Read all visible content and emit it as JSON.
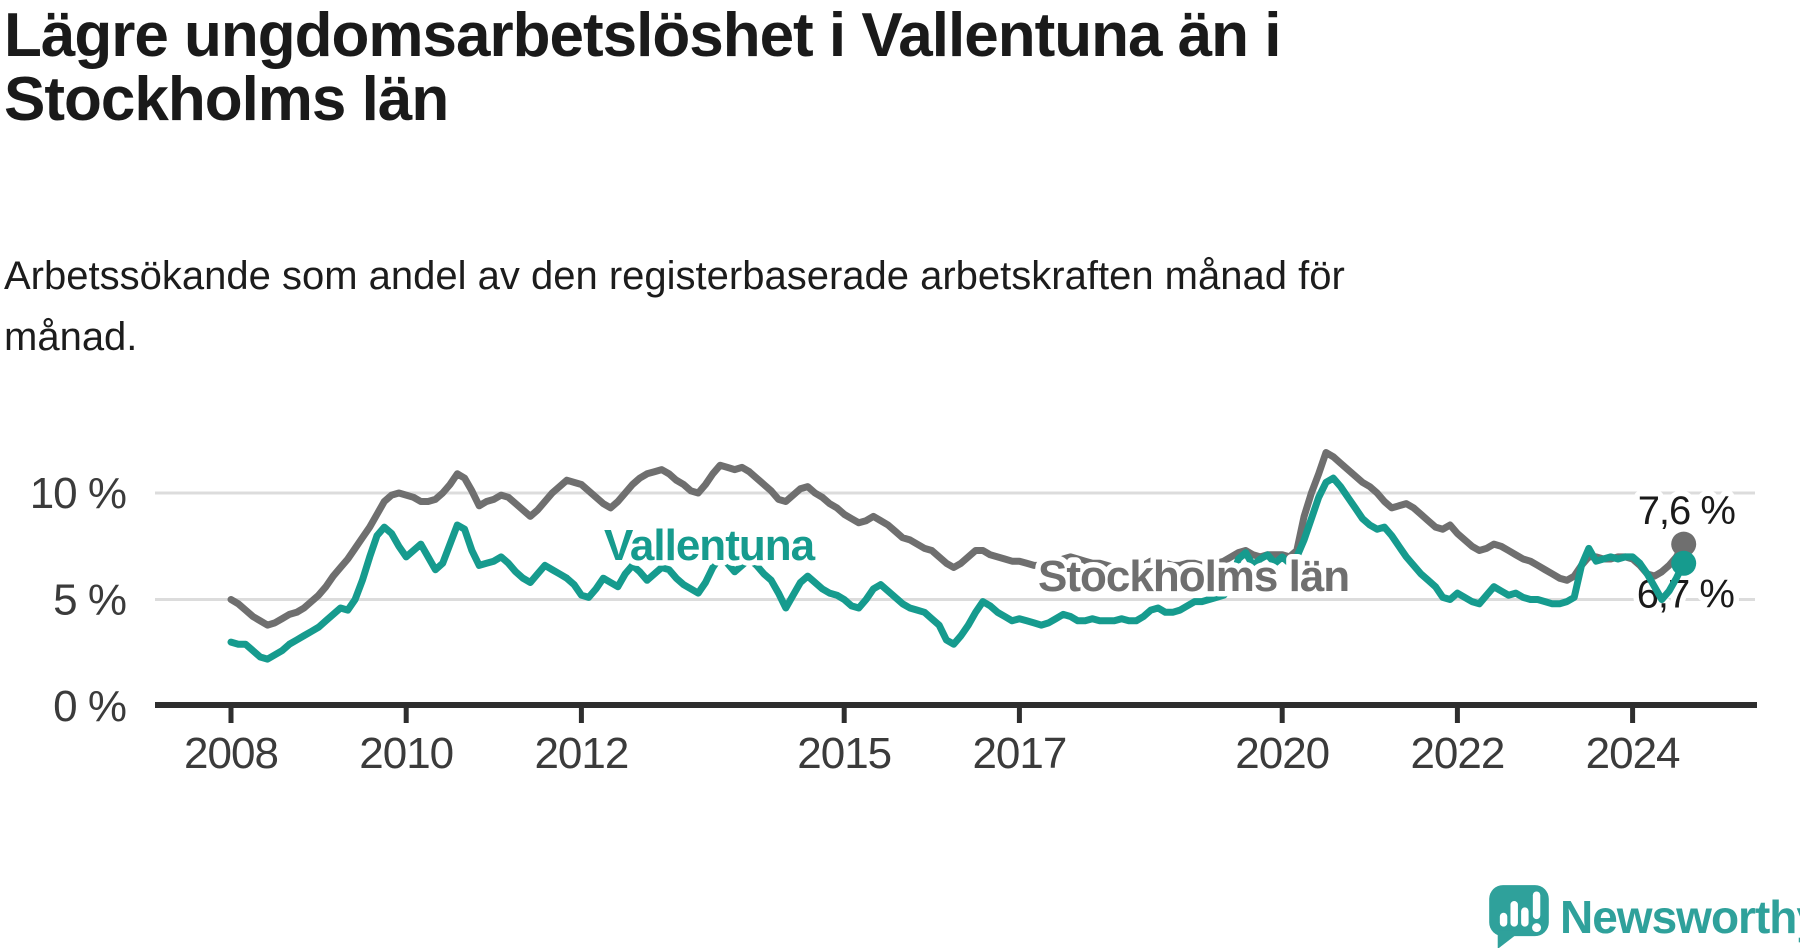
{
  "header": {
    "title_line1": "Lägre ungdomsarbetslöshet i Vallentuna än i",
    "title_line2": "Stockholms län",
    "subtitle_line1": "Arbetssökande som andel av den registerbaserade arbetskraften månad för",
    "subtitle_line2": "månad."
  },
  "footer": {
    "brand": "Newsworthy",
    "brand_color": "#2fa19b",
    "logo_icon": "speech-bubble-bar-chart-icon"
  },
  "chart_data": {
    "type": "line",
    "unit": "percent",
    "frequency": "monthly",
    "start": "2008-01",
    "end": "2024-08",
    "grid": true,
    "y_axis": {
      "range": [
        0,
        12.5
      ],
      "ticks": [
        {
          "value": 0,
          "label": "0 %"
        },
        {
          "value": 5,
          "label": "5 %"
        },
        {
          "value": 10,
          "label": "10 %"
        }
      ]
    },
    "x_axis": {
      "tick_years": [
        2008,
        2010,
        2012,
        2015,
        2017,
        2020,
        2022,
        2024
      ]
    },
    "series": [
      {
        "name": "Stockholms län",
        "color": "#6f6f6f",
        "end_value": 7.6,
        "end_label": "7,6 %",
        "values": [
          5.0,
          4.8,
          4.5,
          4.2,
          4.0,
          3.8,
          3.9,
          4.1,
          4.3,
          4.4,
          4.6,
          4.9,
          5.2,
          5.6,
          6.1,
          6.5,
          6.9,
          7.4,
          7.9,
          8.4,
          9.0,
          9.6,
          9.9,
          10.0,
          9.9,
          9.8,
          9.6,
          9.6,
          9.7,
          10.0,
          10.4,
          10.9,
          10.7,
          10.1,
          9.4,
          9.6,
          9.7,
          9.9,
          9.8,
          9.5,
          9.2,
          8.9,
          9.2,
          9.6,
          10.0,
          10.3,
          10.6,
          10.5,
          10.4,
          10.1,
          9.8,
          9.5,
          9.3,
          9.6,
          10.0,
          10.4,
          10.7,
          10.9,
          11.0,
          11.1,
          10.9,
          10.6,
          10.4,
          10.1,
          10.0,
          10.4,
          10.9,
          11.3,
          11.2,
          11.1,
          11.2,
          11.0,
          10.7,
          10.4,
          10.1,
          9.7,
          9.6,
          9.9,
          10.2,
          10.3,
          10.0,
          9.8,
          9.5,
          9.3,
          9.0,
          8.8,
          8.6,
          8.7,
          8.9,
          8.7,
          8.5,
          8.2,
          7.9,
          7.8,
          7.6,
          7.4,
          7.3,
          7.0,
          6.7,
          6.5,
          6.7,
          7.0,
          7.3,
          7.3,
          7.1,
          7.0,
          6.9,
          6.8,
          6.8,
          6.7,
          6.6,
          6.6,
          6.5,
          6.7,
          6.9,
          7.0,
          6.9,
          6.8,
          6.7,
          6.7,
          6.6,
          6.5,
          6.5,
          6.4,
          6.4,
          6.6,
          6.8,
          6.9,
          6.7,
          6.6,
          6.6,
          6.7,
          6.7,
          6.6,
          6.6,
          6.7,
          6.8,
          7.0,
          7.2,
          7.3,
          7.1,
          7.0,
          7.1,
          7.1,
          7.1,
          7.0,
          7.3,
          8.9,
          10.0,
          10.9,
          11.9,
          11.7,
          11.4,
          11.1,
          10.8,
          10.5,
          10.3,
          10.0,
          9.6,
          9.3,
          9.4,
          9.5,
          9.3,
          9.0,
          8.7,
          8.4,
          8.3,
          8.5,
          8.1,
          7.8,
          7.5,
          7.3,
          7.4,
          7.6,
          7.5,
          7.3,
          7.1,
          6.9,
          6.8,
          6.6,
          6.4,
          6.2,
          6.0,
          5.9,
          6.1,
          6.6,
          7.0,
          7.0,
          6.9,
          6.9,
          7.0,
          7.0,
          6.9,
          6.6,
          6.2,
          6.1,
          6.3,
          6.6,
          7.0,
          7.6
        ]
      },
      {
        "name": "Vallentuna",
        "color": "#169b8e",
        "end_value": 6.7,
        "end_label": "6,7 %",
        "values": [
          3.0,
          2.9,
          2.9,
          2.6,
          2.3,
          2.2,
          2.4,
          2.6,
          2.9,
          3.1,
          3.3,
          3.5,
          3.7,
          4.0,
          4.3,
          4.6,
          4.5,
          5.0,
          5.9,
          7.0,
          8.0,
          8.4,
          8.1,
          7.5,
          7.0,
          7.3,
          7.6,
          7.0,
          6.4,
          6.7,
          7.6,
          8.5,
          8.3,
          7.3,
          6.6,
          6.7,
          6.8,
          7.0,
          6.7,
          6.3,
          6.0,
          5.8,
          6.2,
          6.6,
          6.4,
          6.2,
          6.0,
          5.7,
          5.2,
          5.1,
          5.5,
          6.0,
          5.8,
          5.6,
          6.2,
          6.6,
          6.3,
          5.9,
          6.2,
          6.5,
          6.4,
          6.0,
          5.7,
          5.5,
          5.3,
          5.8,
          6.5,
          7.0,
          6.7,
          6.3,
          6.6,
          6.9,
          6.6,
          6.2,
          5.9,
          5.3,
          4.6,
          5.2,
          5.8,
          6.1,
          5.8,
          5.5,
          5.3,
          5.2,
          5.0,
          4.7,
          4.6,
          5.0,
          5.5,
          5.7,
          5.4,
          5.1,
          4.8,
          4.6,
          4.5,
          4.4,
          4.1,
          3.8,
          3.1,
          2.9,
          3.3,
          3.8,
          4.4,
          4.9,
          4.7,
          4.4,
          4.2,
          4.0,
          4.1,
          4.0,
          3.9,
          3.8,
          3.9,
          4.1,
          4.3,
          4.2,
          4.0,
          4.0,
          4.1,
          4.0,
          4.0,
          4.0,
          4.1,
          4.0,
          4.0,
          4.2,
          4.5,
          4.6,
          4.4,
          4.4,
          4.5,
          4.7,
          4.9,
          4.9,
          5.0,
          5.1,
          5.2,
          5.8,
          6.9,
          7.2,
          6.6,
          6.9,
          7.1,
          6.7,
          7.0,
          6.7,
          7.0,
          7.8,
          8.8,
          9.8,
          10.5,
          10.7,
          10.3,
          9.8,
          9.3,
          8.8,
          8.5,
          8.3,
          8.4,
          8.0,
          7.5,
          7.0,
          6.6,
          6.2,
          5.9,
          5.6,
          5.1,
          5.0,
          5.3,
          5.1,
          4.9,
          4.8,
          5.2,
          5.6,
          5.4,
          5.2,
          5.3,
          5.1,
          5.0,
          5.0,
          4.9,
          4.8,
          4.8,
          4.9,
          5.1,
          6.6,
          7.4,
          6.8,
          6.9,
          7.0,
          6.9,
          7.0,
          7.0,
          6.7,
          6.2,
          5.6,
          5.0,
          5.4,
          6.0,
          6.7
        ]
      }
    ]
  }
}
